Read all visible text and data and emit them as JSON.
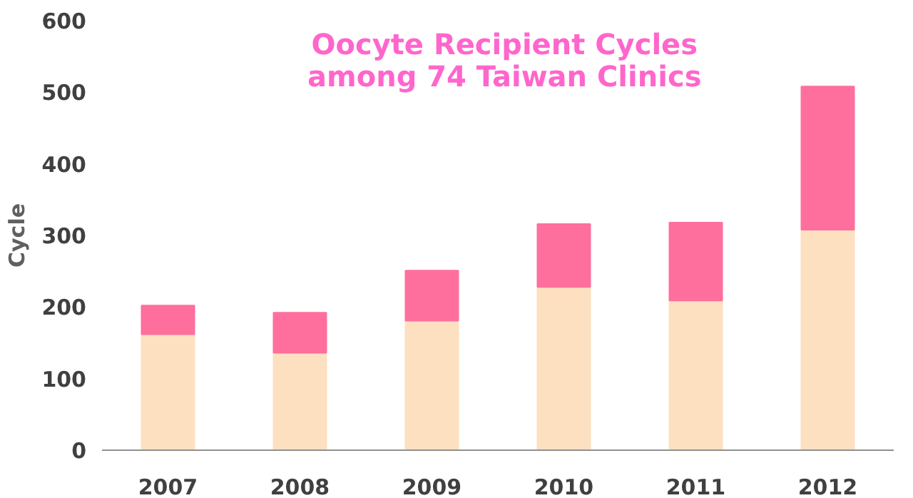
{
  "chart_data": {
    "type": "bar",
    "title": "Oocyte Recipient Cycles\namong 74 Taiwan Clinics",
    "ylabel": "Cycle",
    "categories": [
      "2007",
      "2008",
      "2009",
      "2010",
      "2011",
      "2012"
    ],
    "stacked": true,
    "series": [
      {
        "color": "#fde0c0",
        "values": [
          162,
          136,
          181,
          228,
          209,
          308
        ]
      },
      {
        "color": "#fe6f9e",
        "values": [
          40,
          56,
          70,
          88,
          109,
          200
        ]
      }
    ],
    "ylim": [
      0,
      600
    ],
    "yticks": [
      0,
      100,
      200,
      300,
      400,
      500,
      600
    ],
    "grid": false
  }
}
